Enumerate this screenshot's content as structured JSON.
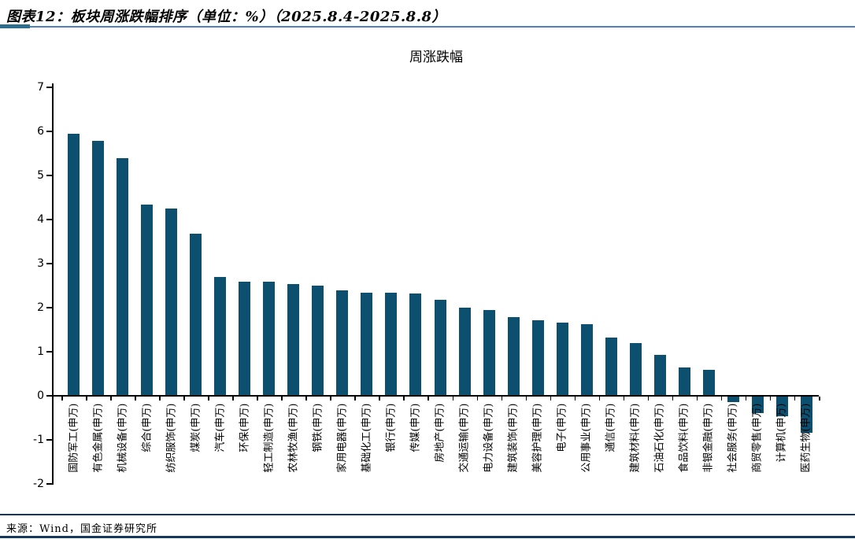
{
  "header": {
    "title": "图表12：板块周涨跌幅排序（单位：%）（2025.8.4-2025.8.8）"
  },
  "footer": {
    "source": "来源：Wind，国金证券研究所"
  },
  "colors": {
    "accent_rule_thick": "#2d6d8d",
    "accent_rule_thin": "#4f81bd",
    "footer_rule": "#17365d",
    "axis": "#000000"
  },
  "chart_data": {
    "type": "bar",
    "title": "周涨跌幅",
    "xlabel": "",
    "ylabel": "",
    "ylim": [
      -2,
      7
    ],
    "yticks": [
      7,
      6,
      5,
      4,
      3,
      2,
      1,
      0,
      -1,
      -2
    ],
    "grid": false,
    "legend_position": "none",
    "bar_color": "#0d4f6e",
    "categories": [
      "国防军工(申万)",
      "有色金属(申万)",
      "机械设备(申万)",
      "综合(申万)",
      "纺织服饰(申万)",
      "煤炭(申万)",
      "汽车(申万)",
      "环保(申万)",
      "轻工制造(申万)",
      "农林牧渔(申万)",
      "钢铁(申万)",
      "家用电器(申万)",
      "基础化工(申万)",
      "银行(申万)",
      "传媒(申万)",
      "房地产(申万)",
      "交通运输(申万)",
      "电力设备(申万)",
      "建筑装饰(申万)",
      "美容护理(申万)",
      "电子(申万)",
      "公用事业(申万)",
      "通信(申万)",
      "建筑材料(申万)",
      "石油石化(申万)",
      "食品饮料(申万)",
      "非银金融(申万)",
      "社会服务(申万)",
      "商贸零售(申万)",
      "计算机(申万)",
      "医药生物(申万)"
    ],
    "values": [
      5.93,
      5.77,
      5.37,
      4.33,
      4.23,
      3.66,
      2.68,
      2.58,
      2.57,
      2.51,
      2.49,
      2.37,
      2.33,
      2.32,
      2.3,
      2.16,
      1.98,
      1.93,
      1.76,
      1.7,
      1.65,
      1.61,
      1.3,
      1.18,
      0.91,
      0.62,
      0.57,
      -0.13,
      -0.38,
      -0.45,
      -0.83
    ]
  }
}
